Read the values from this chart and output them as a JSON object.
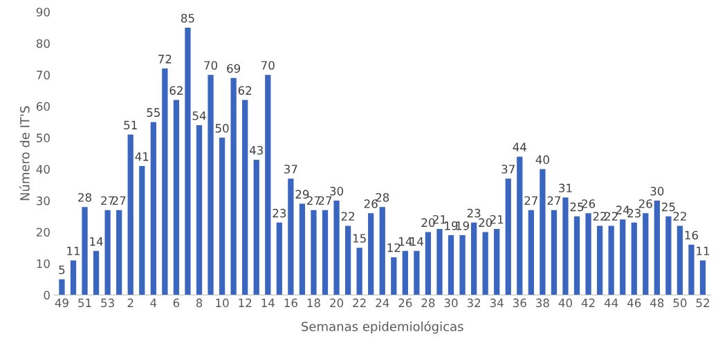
{
  "chart_data": {
    "type": "bar",
    "xlabel": "Semanas epidemiológicas",
    "ylabel": "Número de IT'S",
    "categories": [
      "49",
      null,
      "51",
      null,
      "53",
      null,
      "2",
      null,
      "4",
      null,
      "6",
      null,
      "8",
      null,
      "10",
      null,
      "12",
      null,
      "14",
      null,
      "16",
      null,
      "18",
      null,
      "20",
      null,
      "22",
      null,
      "24",
      null,
      "26",
      null,
      "28",
      null,
      "30",
      null,
      "32",
      null,
      "34",
      null,
      "36",
      null,
      "38",
      null,
      "40",
      null,
      "42",
      null,
      "44",
      null,
      "46",
      null,
      "48",
      null,
      "50",
      null,
      "52"
    ],
    "values": [
      5,
      11,
      28,
      14,
      27,
      27,
      51,
      41,
      55,
      72,
      62,
      85,
      54,
      70,
      50,
      69,
      62,
      43,
      70,
      23,
      37,
      29,
      27,
      27,
      30,
      22,
      15,
      26,
      28,
      12,
      14,
      14,
      20,
      21,
      19,
      19,
      23,
      20,
      21,
      37,
      44,
      27,
      40,
      27,
      31,
      25,
      26,
      22,
      22,
      24,
      23,
      26,
      30,
      25,
      22,
      16,
      11
    ],
    "color": "#3a66c0",
    "ylim": [
      0,
      90
    ],
    "yticks": [
      0,
      10,
      20,
      30,
      40,
      50,
      60,
      70,
      80,
      90
    ],
    "data_labels": true,
    "grid": false,
    "legend": false
  }
}
